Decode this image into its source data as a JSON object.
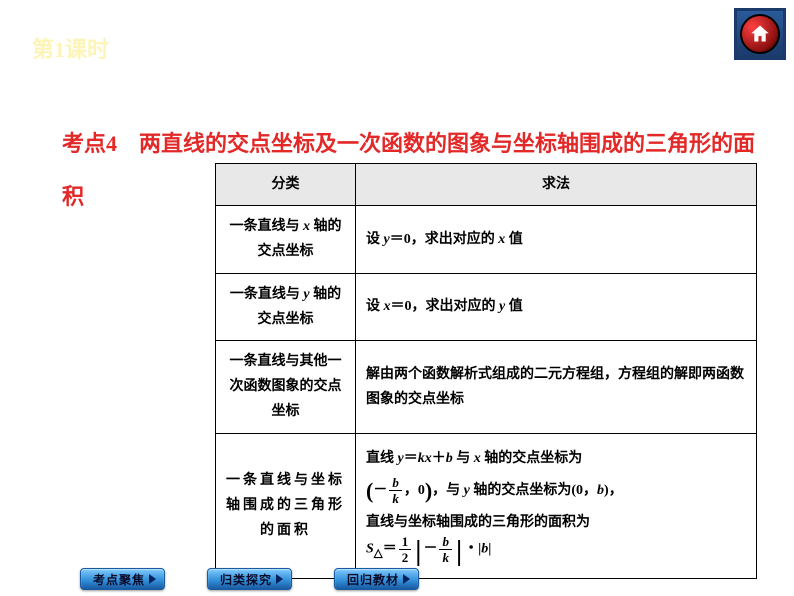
{
  "header": {
    "lesson_prefix": "第",
    "lesson_number": "1",
    "lesson_suffix": "课时"
  },
  "heading": {
    "prefix": "考点4　",
    "text": "两直线的交点坐标及一次函数的图象与坐标轴围成的三角形的面积"
  },
  "colors": {
    "heading_yellow": "#fdf4b8",
    "topic_red": "#e32828",
    "nav_gradient_top": "#7ecaff",
    "nav_gradient_bottom": "#1a5aa0",
    "table_header_bg": "#e8e8e8",
    "home_frame": "#1a3a6a",
    "home_button": "#c01010"
  },
  "table": {
    "headers": [
      "分类",
      "求法"
    ],
    "rows": [
      {
        "category_html": "一条直线与 <span class='ital'>x</span> 轴的交点坐标",
        "method_html": "设 <span class='ital'>y</span>＝0，求出对应的 <span class='ital'>x</span> 值"
      },
      {
        "category_html": "一条直线与 <span class='ital'>y</span> 轴的交点坐标",
        "method_html": "设 <span class='ital'>x</span>＝0，求出对应的 <span class='ital'>y</span> 值"
      },
      {
        "category_html": "一条直线与其他一次函数图象的交点坐标",
        "method_html": "解由两个函数解析式组成的二元方程组，方程组的解即两函数图象的交点坐标"
      },
      {
        "category_html": "一条直线与坐标轴围成的三角形的面积",
        "method_html": "直线 <span class='ital'>y</span>＝<span class='ital'>kx</span>＋<span class='ital'>b</span> 与 <span class='ital'>x</span> 轴的交点坐标为<br><span class='bigparen'>(</span>－<span class='frac'><span class='num ital'>b</span><span class='den ital'>k</span></span>，0<span class='bigparen'>)</span>，与 <span class='ital'>y</span> 轴的交点坐标为(0，<span class='ital'>b</span>)，<br>直线与坐标轴围成的三角形的面积为<br><span class='ital'>S</span><sub>△</sub>＝<span class='frac'><span class='num'>1</span><span class='den'>2</span></span><span class='bigbar'>|</span>－<span class='frac'><span class='num ital'>b</span><span class='den ital'>k</span></span><span class='bigbar'>|</span>・|<span class='ital'>b</span>|"
      }
    ]
  },
  "nav": {
    "btn1": "考点聚焦",
    "btn2": "归类探究",
    "btn3": "回归教材"
  }
}
